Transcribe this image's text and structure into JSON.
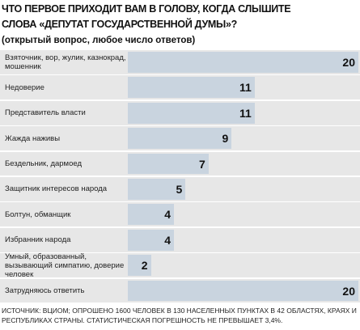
{
  "chart_data": {
    "type": "bar",
    "orientation": "horizontal",
    "title": [
      "ЧТО ПЕРВОЕ ПРИХОДИТ ВАМ В ГОЛОВУ, КОГДА СЛЫШИТЕ",
      "СЛОВА «ДЕПУТАТ ГОСУДАРСТВЕННОЙ ДУМЫ»?"
    ],
    "subtitle": "(открытый вопрос, любое число ответов)",
    "categories": [
      "Взяточник, вор, жулик, казнокрад, мошенник",
      "Недоверие",
      "Представитель власти",
      "Жажда наживы",
      "Бездельник, дармоед",
      "Защитник интересов народа",
      "Болтун, обманщик",
      "Избранник народа",
      "Умный, образованный, вызывающий симпатию, доверие человек",
      "Затрудняюсь ответить"
    ],
    "values": [
      20,
      11,
      11,
      9,
      7,
      5,
      4,
      4,
      2,
      20
    ],
    "color": "#c9d4df",
    "xlim": [
      0,
      20
    ],
    "source": "ИСТОЧНИК: ВЦИОМ; ОПРОШЕНО 1600 ЧЕЛОВЕК В 130 НАСЕЛЕННЫХ ПУНКТАХ В 42 ОБЛАСТЯХ, КРАЯХ И РЕСПУБЛИКАХ СТРАНЫ. СТАТИСТИЧЕСКАЯ ПОГРЕШНОСТЬ НЕ ПРЕВЫШАЕТ 3,4%."
  }
}
